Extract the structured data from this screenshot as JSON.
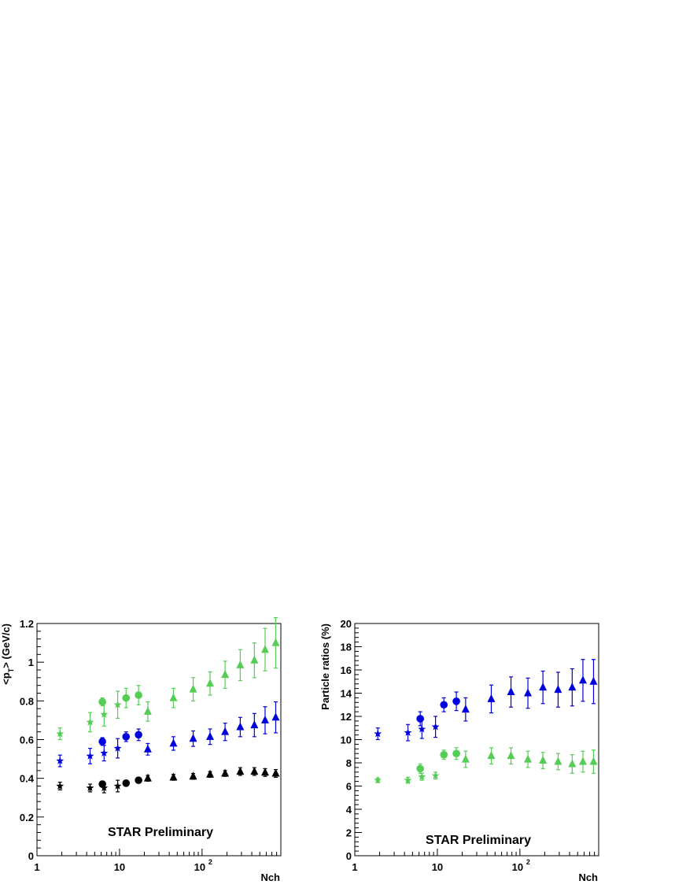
{
  "colors": {
    "black": "#000000",
    "blue": "#0000dd",
    "green": "#55cc55"
  },
  "chart_data": [
    {
      "type": "scatter",
      "xscale": "log",
      "xlim": [
        1,
        900
      ],
      "ylim": [
        0,
        1.2
      ],
      "xlabel": "Nch",
      "ylabel": "<p_T> (GeV/c)",
      "annotation": "STAR Preliminary",
      "x_tick_labels": [
        "1",
        "10",
        "10",
        "2"
      ],
      "y_tick_labels": [
        "0",
        "0.2",
        "0.4",
        "0.6",
        "0.8",
        "1",
        "1.2"
      ],
      "grid": false,
      "series": [
        {
          "color": "black",
          "marker": "star",
          "points": [
            [
              1.9,
              0.36,
              0.02
            ],
            [
              4.4,
              0.35,
              0.02
            ],
            [
              6.5,
              0.35,
              0.025
            ],
            [
              9.5,
              0.36,
              0.03
            ]
          ]
        },
        {
          "color": "black",
          "marker": "circle",
          "points": [
            [
              6.2,
              0.37,
              0.015
            ],
            [
              12,
              0.375,
              0.015
            ],
            [
              17,
              0.39,
              0.015
            ]
          ]
        },
        {
          "color": "black",
          "marker": "triangle",
          "points": [
            [
              22,
              0.4,
              0.015
            ],
            [
              45,
              0.405,
              0.015
            ],
            [
              78,
              0.41,
              0.015
            ],
            [
              125,
              0.42,
              0.015
            ],
            [
              190,
              0.425,
              0.015
            ],
            [
              290,
              0.435,
              0.02
            ],
            [
              430,
              0.435,
              0.02
            ],
            [
              580,
              0.43,
              0.02
            ],
            [
              780,
              0.425,
              0.02
            ]
          ]
        },
        {
          "color": "blue",
          "marker": "star",
          "points": [
            [
              1.9,
              0.49,
              0.03
            ],
            [
              4.4,
              0.515,
              0.04
            ],
            [
              6.5,
              0.53,
              0.04
            ],
            [
              9.5,
              0.555,
              0.05
            ]
          ]
        },
        {
          "color": "blue",
          "marker": "circle",
          "points": [
            [
              6.2,
              0.59,
              0.02
            ],
            [
              12,
              0.615,
              0.025
            ],
            [
              17,
              0.625,
              0.03
            ]
          ]
        },
        {
          "color": "blue",
          "marker": "triangle",
          "points": [
            [
              22,
              0.55,
              0.03
            ],
            [
              45,
              0.58,
              0.035
            ],
            [
              78,
              0.605,
              0.04
            ],
            [
              125,
              0.615,
              0.04
            ],
            [
              190,
              0.64,
              0.045
            ],
            [
              290,
              0.665,
              0.05
            ],
            [
              430,
              0.675,
              0.06
            ],
            [
              580,
              0.7,
              0.07
            ],
            [
              780,
              0.715,
              0.08
            ]
          ]
        },
        {
          "color": "green",
          "marker": "star",
          "points": [
            [
              1.9,
              0.63,
              0.03
            ],
            [
              4.4,
              0.69,
              0.05
            ],
            [
              6.5,
              0.73,
              0.06
            ],
            [
              9.5,
              0.78,
              0.07
            ]
          ]
        },
        {
          "color": "green",
          "marker": "circle",
          "points": [
            [
              6.2,
              0.795,
              0.02
            ],
            [
              12,
              0.815,
              0.05
            ],
            [
              17,
              0.83,
              0.05
            ]
          ]
        },
        {
          "color": "green",
          "marker": "triangle",
          "points": [
            [
              22,
              0.745,
              0.05
            ],
            [
              45,
              0.815,
              0.05
            ],
            [
              78,
              0.86,
              0.06
            ],
            [
              125,
              0.89,
              0.06
            ],
            [
              190,
              0.935,
              0.07
            ],
            [
              290,
              0.985,
              0.08
            ],
            [
              430,
              1.01,
              0.09
            ],
            [
              580,
              1.065,
              0.11
            ],
            [
              780,
              1.1,
              0.13
            ]
          ]
        }
      ]
    },
    {
      "type": "scatter",
      "xscale": "log",
      "xlim": [
        1,
        900
      ],
      "ylim": [
        0,
        20
      ],
      "xlabel": "Nch",
      "ylabel": "Particle ratios (%)",
      "annotation": "STAR Preliminary",
      "x_tick_labels": [
        "1",
        "10",
        "10",
        "2"
      ],
      "y_tick_labels": [
        "0",
        "2",
        "4",
        "6",
        "8",
        "10",
        "12",
        "14",
        "16",
        "18",
        "20"
      ],
      "grid": false,
      "series": [
        {
          "color": "blue",
          "marker": "star",
          "points": [
            [
              1.9,
              10.5,
              0.5
            ],
            [
              4.4,
              10.6,
              0.7
            ],
            [
              6.5,
              10.9,
              0.8
            ],
            [
              9.5,
              11.1,
              0.9
            ]
          ]
        },
        {
          "color": "blue",
          "marker": "circle",
          "points": [
            [
              6.2,
              11.8,
              0.6
            ],
            [
              12,
              13.0,
              0.6
            ],
            [
              17,
              13.3,
              0.8
            ]
          ]
        },
        {
          "color": "blue",
          "marker": "triangle",
          "points": [
            [
              22,
              12.6,
              1.0
            ],
            [
              45,
              13.5,
              1.2
            ],
            [
              78,
              14.1,
              1.3
            ],
            [
              125,
              14.0,
              1.3
            ],
            [
              190,
              14.5,
              1.4
            ],
            [
              290,
              14.3,
              1.5
            ],
            [
              430,
              14.5,
              1.6
            ],
            [
              580,
              15.1,
              1.8
            ],
            [
              780,
              15.0,
              1.9
            ]
          ]
        },
        {
          "color": "green",
          "marker": "star",
          "points": [
            [
              1.9,
              6.5,
              0.2
            ],
            [
              4.4,
              6.5,
              0.25
            ],
            [
              6.5,
              6.8,
              0.3
            ],
            [
              9.5,
              6.9,
              0.3
            ]
          ]
        },
        {
          "color": "green",
          "marker": "circle",
          "points": [
            [
              6.2,
              7.5,
              0.4
            ],
            [
              12,
              8.7,
              0.4
            ],
            [
              17,
              8.8,
              0.5
            ]
          ]
        },
        {
          "color": "green",
          "marker": "triangle",
          "points": [
            [
              22,
              8.3,
              0.7
            ],
            [
              45,
              8.6,
              0.7
            ],
            [
              78,
              8.6,
              0.7
            ],
            [
              125,
              8.3,
              0.7
            ],
            [
              190,
              8.2,
              0.7
            ],
            [
              290,
              8.1,
              0.7
            ],
            [
              430,
              7.9,
              0.8
            ],
            [
              580,
              8.1,
              0.9
            ],
            [
              780,
              8.1,
              1.0
            ]
          ]
        }
      ]
    }
  ]
}
